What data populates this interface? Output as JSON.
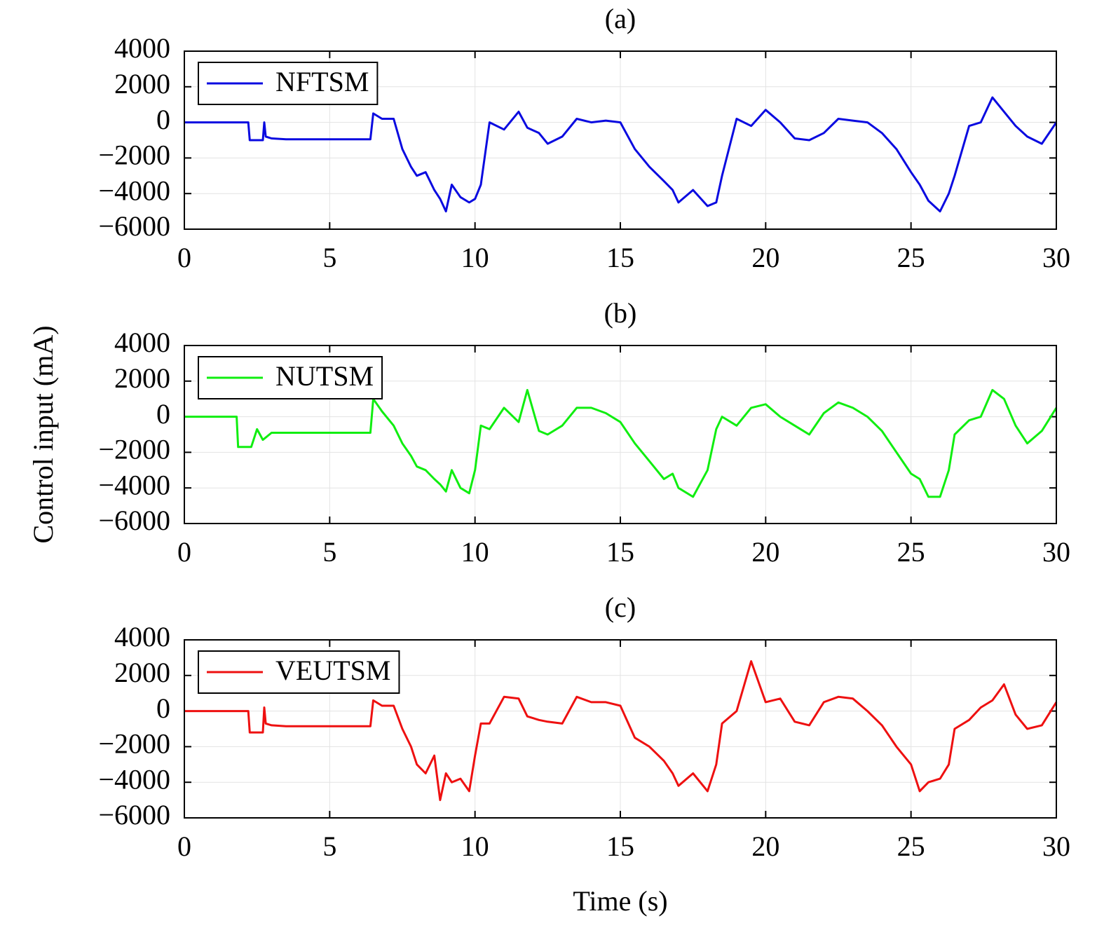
{
  "ylabel": "Control input (mA)",
  "xlabel": "Time (s)",
  "chart_data": [
    {
      "type": "line",
      "title": "(a)",
      "legend": "upper left",
      "grid": true,
      "xlim": [
        0,
        30
      ],
      "ylim": [
        -6000,
        4000
      ],
      "xticks": [
        0,
        5,
        10,
        15,
        20,
        25,
        30
      ],
      "yticks": [
        {
          "value": -6000,
          "label": "−6000"
        },
        {
          "value": -4000,
          "label": "−4000"
        },
        {
          "value": -2000,
          "label": "−2000"
        },
        0,
        2000,
        4000
      ],
      "x": [
        0,
        2.2,
        2.25,
        2.7,
        2.75,
        2.8,
        3,
        3.5,
        4,
        5,
        6,
        6.4,
        6.5,
        6.8,
        7.2,
        7.5,
        7.8,
        8,
        8.3,
        8.6,
        8.8,
        9,
        9.2,
        9.5,
        9.8,
        10,
        10.2,
        10.5,
        11,
        11.5,
        11.8,
        12.2,
        12.5,
        13,
        13.5,
        14,
        14.5,
        15,
        15.5,
        16,
        16.5,
        16.8,
        17,
        17.5,
        18,
        18.3,
        18.5,
        19,
        19.5,
        20,
        20.5,
        21,
        21.5,
        22,
        22.5,
        23,
        23.5,
        24,
        24.5,
        25,
        25.3,
        25.6,
        26,
        26.3,
        26.5,
        27,
        27.4,
        27.8,
        28.2,
        28.6,
        29,
        29.5,
        30
      ],
      "series": [
        {
          "name": "NFTSM",
          "color": "#0a0ae0",
          "values": [
            0,
            0,
            -1000,
            -1000,
            0,
            -800,
            -900,
            -950,
            -950,
            -950,
            -950,
            -950,
            500,
            200,
            200,
            -1500,
            -2500,
            -3000,
            -2800,
            -3800,
            -4300,
            -5000,
            -3500,
            -4200,
            -4500,
            -4300,
            -3500,
            0,
            -400,
            600,
            -300,
            -600,
            -1200,
            -800,
            200,
            0,
            100,
            0,
            -1500,
            -2500,
            -3300,
            -3800,
            -4500,
            -3800,
            -4700,
            -4500,
            -3000,
            200,
            -200,
            700,
            0,
            -900,
            -1000,
            -600,
            200,
            100,
            0,
            -600,
            -1500,
            -2800,
            -3500,
            -4400,
            -5000,
            -4000,
            -3000,
            -200,
            0,
            1400,
            600,
            -200,
            -800,
            -1200,
            0
          ]
        }
      ]
    },
    {
      "type": "line",
      "title": "(b)",
      "legend": "upper left",
      "grid": true,
      "xlim": [
        0,
        30
      ],
      "ylim": [
        -6000,
        4000
      ],
      "xticks": [
        0,
        5,
        10,
        15,
        20,
        25,
        30
      ],
      "yticks": [
        {
          "value": -6000,
          "label": "−6000"
        },
        {
          "value": -4000,
          "label": "−4000"
        },
        {
          "value": -2000,
          "label": "−2000"
        },
        0,
        2000,
        4000
      ],
      "x": [
        0,
        1.8,
        1.85,
        2.3,
        2.5,
        2.7,
        3,
        4,
        5,
        6,
        6.3,
        6.4,
        6.5,
        6.8,
        7.2,
        7.5,
        7.8,
        8,
        8.3,
        8.6,
        8.8,
        9,
        9.2,
        9.5,
        9.8,
        10,
        10.2,
        10.5,
        11,
        11.5,
        11.8,
        12.2,
        12.5,
        13,
        13.5,
        14,
        14.5,
        15,
        15.5,
        16,
        16.5,
        16.8,
        17,
        17.5,
        18,
        18.3,
        18.5,
        19,
        19.5,
        20,
        20.5,
        21,
        21.5,
        22,
        22.5,
        23,
        23.5,
        24,
        24.5,
        25,
        25.3,
        25.6,
        26,
        26.3,
        26.5,
        27,
        27.4,
        27.8,
        28.2,
        28.6,
        29,
        29.5,
        30
      ],
      "series": [
        {
          "name": "NUTSM",
          "color": "#10ee10",
          "values": [
            0,
            0,
            -1700,
            -1700,
            -700,
            -1300,
            -900,
            -900,
            -900,
            -900,
            -900,
            -900,
            1000,
            300,
            -500,
            -1500,
            -2200,
            -2800,
            -3000,
            -3500,
            -3800,
            -4200,
            -3000,
            -4000,
            -4300,
            -3000,
            -500,
            -700,
            500,
            -300,
            1500,
            -800,
            -1000,
            -500,
            500,
            500,
            200,
            -300,
            -1500,
            -2500,
            -3500,
            -3200,
            -4000,
            -4500,
            -3000,
            -700,
            0,
            -500,
            500,
            700,
            0,
            -500,
            -1000,
            200,
            800,
            500,
            0,
            -800,
            -2000,
            -3200,
            -3500,
            -4500,
            -4500,
            -3000,
            -1000,
            -200,
            0,
            1500,
            1000,
            -500,
            -1500,
            -800,
            500
          ]
        }
      ]
    },
    {
      "type": "line",
      "title": "(c)",
      "legend": "upper left",
      "grid": true,
      "xlim": [
        0,
        30
      ],
      "ylim": [
        -6000,
        4000
      ],
      "xticks": [
        0,
        5,
        10,
        15,
        20,
        25,
        30
      ],
      "yticks": [
        {
          "value": -6000,
          "label": "−6000"
        },
        {
          "value": -4000,
          "label": "−4000"
        },
        {
          "value": -2000,
          "label": "−2000"
        },
        0,
        2000,
        4000
      ],
      "x": [
        0,
        2.2,
        2.25,
        2.7,
        2.75,
        2.8,
        3,
        3.5,
        4,
        5,
        6,
        6.4,
        6.5,
        6.8,
        7.2,
        7.5,
        7.8,
        8,
        8.3,
        8.6,
        8.8,
        9,
        9.2,
        9.5,
        9.8,
        10,
        10.2,
        10.5,
        11,
        11.5,
        11.8,
        12.2,
        12.5,
        13,
        13.5,
        14,
        14.5,
        15,
        15.5,
        16,
        16.5,
        16.8,
        17,
        17.5,
        18,
        18.3,
        18.5,
        19,
        19.5,
        20,
        20.5,
        21,
        21.5,
        22,
        22.5,
        23,
        23.5,
        24,
        24.5,
        25,
        25.3,
        25.6,
        26,
        26.3,
        26.5,
        27,
        27.4,
        27.8,
        28.2,
        28.6,
        29,
        29.5,
        30
      ],
      "series": [
        {
          "name": "VEUTSM",
          "color": "#ee1010",
          "values": [
            0,
            0,
            -1200,
            -1200,
            200,
            -700,
            -800,
            -850,
            -850,
            -850,
            -850,
            -850,
            600,
            300,
            300,
            -1000,
            -2000,
            -3000,
            -3500,
            -2500,
            -5000,
            -3500,
            -4000,
            -3800,
            -4500,
            -2500,
            -700,
            -700,
            800,
            700,
            -300,
            -500,
            -600,
            -700,
            800,
            500,
            500,
            300,
            -1500,
            -2000,
            -2800,
            -3500,
            -4200,
            -3500,
            -4500,
            -3000,
            -700,
            0,
            2800,
            500,
            700,
            -600,
            -800,
            500,
            800,
            700,
            0,
            -800,
            -2000,
            -3000,
            -4500,
            -4000,
            -3800,
            -3000,
            -1000,
            -500,
            200,
            600,
            1500,
            -200,
            -1000,
            -800,
            500
          ]
        }
      ]
    }
  ]
}
